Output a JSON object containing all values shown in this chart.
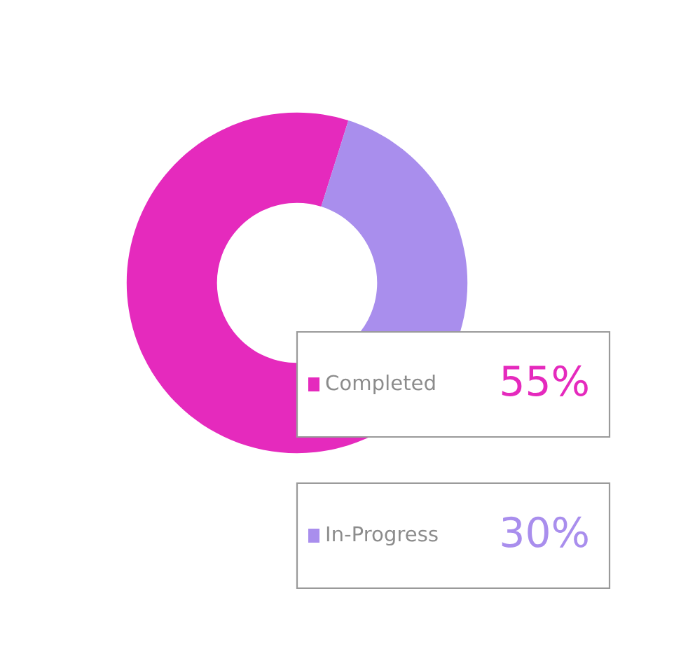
{
  "chart_data": {
    "type": "donut",
    "categories": [
      "Completed",
      "In-Progress"
    ],
    "values": [
      55,
      30
    ],
    "value_labels": [
      "55%",
      "30%"
    ],
    "colors": [
      "#e52abd",
      "#a98eed"
    ],
    "legend": "bottom right"
  }
}
